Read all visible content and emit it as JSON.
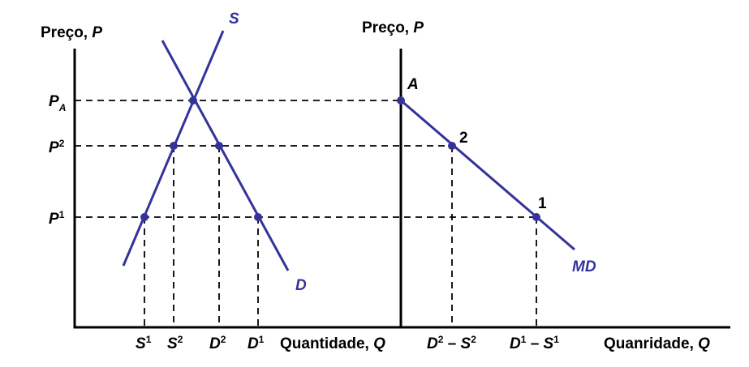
{
  "left_panel": {
    "y_axis_label_text": "Preço, ",
    "y_axis_label_var": "P",
    "x_axis_label_text": "Quantidade, ",
    "x_axis_label_var": "Q",
    "supply_label": "S",
    "demand_label": "D",
    "price_labels": [
      {
        "base": "P",
        "mark": "A",
        "kind": "sub"
      },
      {
        "base": "P",
        "mark": "2",
        "kind": "sup"
      },
      {
        "base": "P",
        "mark": "1",
        "kind": "sup"
      }
    ],
    "quantity_labels": [
      {
        "base": "S",
        "mark": "1"
      },
      {
        "base": "S",
        "mark": "2"
      },
      {
        "base": "D",
        "mark": "2"
      },
      {
        "base": "D",
        "mark": "1"
      }
    ]
  },
  "right_panel": {
    "y_axis_label_text": "Preço, ",
    "y_axis_label_var": "P",
    "x_axis_label_text": "Quanridade, ",
    "x_axis_label_var": "Q",
    "curve_label": "MD",
    "point_labels": [
      "A",
      "2",
      "1"
    ],
    "quantity_labels": [
      {
        "a": "D",
        "a_sup": "2",
        "sep": " – ",
        "b": "S",
        "b_sup": "2"
      },
      {
        "a": "D",
        "a_sup": "1",
        "sep": " – ",
        "b": "S",
        "b_sup": "1"
      }
    ]
  }
}
